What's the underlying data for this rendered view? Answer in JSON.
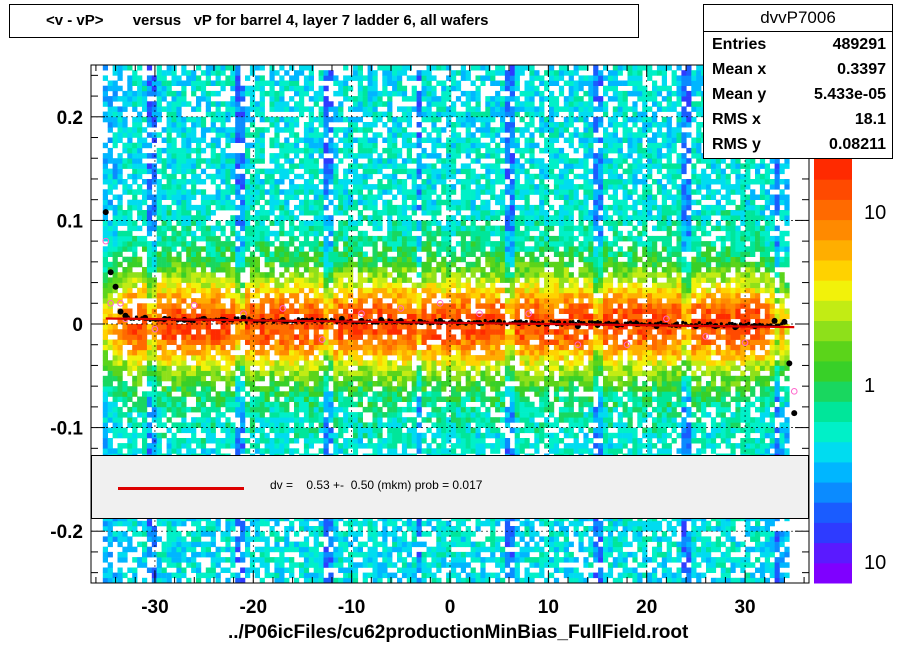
{
  "title": "<v - vP>       versus   vP for barrel 4, layer 7 ladder 6, all wafers",
  "stats": {
    "name": "dvvP7006",
    "rows": [
      {
        "label": "Entries",
        "value": "489291"
      },
      {
        "label": "Mean x",
        "value": "0.3397"
      },
      {
        "label": "Mean y",
        "value": "5.433e-05"
      },
      {
        "label": "RMS x",
        "value": "18.1"
      },
      {
        "label": "RMS y",
        "value": "0.08211"
      }
    ]
  },
  "fit": {
    "text": "dv =    0.53 +-  0.50 (mkm) prob = 0.017",
    "line_color": "#dd0000"
  },
  "xlabel": "../P06icFiles/cu62productionMinBias_FullField.root",
  "colors": {
    "profile": "#000000",
    "fit": "#dd0000",
    "outline_points": "#ff66cc"
  },
  "chart_data": {
    "type": "heatmap",
    "title": "<v - vP>       versus   vP for barrel 4, layer 7 ladder 6, all wafers",
    "xlabel": "../P06icFiles/cu62productionMinBias_FullField.root",
    "ylabel": "",
    "xlim": [
      -36.5,
      36.5
    ],
    "ylim": [
      -0.25,
      0.25
    ],
    "x_ticks": [
      -30,
      -20,
      -10,
      0,
      10,
      20,
      30
    ],
    "y_ticks": [
      -0.2,
      -0.1,
      0,
      0.1,
      0.2
    ],
    "y_tick_labels": [
      "-0.2",
      "-0.1",
      "0",
      "0.1",
      "0.2"
    ],
    "grid": true,
    "z_scale": "log",
    "z_tick_labels": [
      "10",
      "1",
      "10"
    ],
    "profile": {
      "x": [
        -35,
        -34.5,
        -34,
        -33.5,
        -33,
        -31,
        -29,
        -27,
        -25,
        -23,
        -21,
        -19,
        -17,
        -15,
        -13,
        -11,
        -9,
        -7,
        -5,
        -3,
        -1,
        1,
        3,
        5,
        7,
        9,
        11,
        13,
        15,
        17,
        19,
        21,
        23,
        25,
        27,
        29,
        31,
        33,
        34,
        34.5,
        35
      ],
      "y": [
        0.108,
        0.05,
        0.036,
        0.012,
        0.008,
        0.006,
        0.005,
        0.004,
        0.005,
        0.004,
        0.006,
        0.003,
        0.004,
        0.003,
        0.003,
        0.005,
        0.003,
        0.004,
        0.003,
        0.002,
        0.003,
        0.002,
        0.001,
        0.002,
        0.001,
        0.0,
        0.001,
        -0.002,
        -0.001,
        -0.001,
        0.0,
        -0.002,
        -0.001,
        -0.002,
        -0.002,
        -0.003,
        -0.002,
        0.003,
        0.002,
        -0.038,
        -0.086
      ]
    },
    "outline_points": {
      "x": [
        -35,
        -34.5,
        -33.5,
        -33,
        -30,
        -26,
        -21,
        -17,
        -13,
        -9,
        -5,
        -1,
        3,
        8,
        13,
        18,
        22,
        26,
        30,
        35
      ],
      "y": [
        0.08,
        0.02,
        0.02,
        0.005,
        -0.005,
        0.018,
        0.01,
        0.015,
        -0.015,
        0.01,
        0.015,
        0.02,
        0.01,
        0.01,
        -0.02,
        -0.02,
        0.005,
        -0.012,
        -0.018,
        -0.065
      ]
    },
    "fit_line": {
      "x": [
        -35,
        35
      ],
      "y": [
        0.0053,
        -0.003
      ]
    }
  }
}
